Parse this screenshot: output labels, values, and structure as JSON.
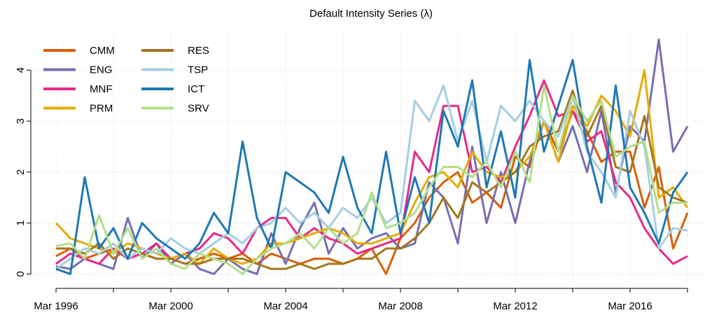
{
  "chart_data": {
    "type": "line",
    "title": "Default Intensity Series (λ)",
    "x": [
      "Mar 1996",
      "Sep 1996",
      "Mar 1997",
      "Sep 1997",
      "Mar 1998",
      "Sep 1998",
      "Mar 1999",
      "Sep 1999",
      "Mar 2000",
      "Sep 2000",
      "Mar 2001",
      "Sep 2001",
      "Mar 2002",
      "Sep 2002",
      "Mar 2003",
      "Sep 2003",
      "Mar 2004",
      "Sep 2004",
      "Mar 2005",
      "Sep 2005",
      "Mar 2006",
      "Sep 2006",
      "Mar 2007",
      "Sep 2007",
      "Mar 2008",
      "Sep 2008",
      "Mar 2009",
      "Sep 2009",
      "Mar 2010",
      "Sep 2010",
      "Mar 2011",
      "Sep 2011",
      "Mar 2012",
      "Sep 2012",
      "Mar 2013",
      "Sep 2013",
      "Mar 2014",
      "Sep 2014",
      "Mar 2015",
      "Sep 2015",
      "Mar 2016",
      "Sep 2016",
      "Mar 2017",
      "Sep 2017",
      "Mar 2018"
    ],
    "xticks": [
      "Mar 1996",
      "Mar 2000",
      "Mar 2004",
      "Mar 2008",
      "Mar 2012",
      "Mar 2016"
    ],
    "xminorticks": [
      "Mar 1998",
      "Mar 2002",
      "Mar 2006",
      "Mar 2010",
      "Mar 2014",
      "Mar 2018"
    ],
    "ylim": [
      -0.2,
      4.8
    ],
    "yticks": [
      0,
      1,
      2,
      3,
      4
    ],
    "grid": true,
    "legend": "top-left",
    "series": [
      {
        "name": "CMM",
        "color": "#d95f02",
        "values": [
          0.35,
          0.5,
          0.3,
          0.4,
          0.5,
          0.3,
          0.4,
          0.3,
          0.3,
          0.2,
          0.3,
          0.4,
          0.3,
          0.4,
          0.2,
          0.4,
          0.3,
          0.2,
          0.3,
          0.3,
          0.2,
          0.3,
          0.5,
          0.0,
          0.7,
          1.0,
          1.5,
          1.8,
          2.0,
          1.4,
          1.6,
          1.3,
          2.3,
          2.1,
          3.0,
          2.4,
          3.2,
          2.8,
          2.2,
          2.4,
          2.4,
          1.3,
          2.1,
          0.5,
          1.2
        ]
      },
      {
        "name": "ENG",
        "color": "#7570b3",
        "values": [
          0.15,
          0.1,
          0.3,
          0.2,
          0.1,
          1.1,
          0.3,
          0.6,
          0.2,
          0.4,
          0.1,
          0.0,
          0.3,
          0.1,
          0.0,
          0.8,
          0.2,
          0.9,
          1.4,
          0.4,
          0.9,
          0.5,
          0.7,
          0.8,
          0.5,
          0.6,
          1.8,
          1.5,
          0.6,
          2.5,
          1.0,
          2.0,
          1.0,
          2.2,
          3.0,
          2.2,
          2.9,
          2.0,
          3.2,
          1.6,
          2.9,
          2.6,
          4.6,
          2.4,
          2.9
        ]
      },
      {
        "name": "MNF",
        "color": "#e7298a",
        "values": [
          0.2,
          0.4,
          0.3,
          0.2,
          0.5,
          0.3,
          0.4,
          0.6,
          0.3,
          0.4,
          0.5,
          0.8,
          0.7,
          0.4,
          0.9,
          1.1,
          1.1,
          0.7,
          0.9,
          0.7,
          0.6,
          0.4,
          0.5,
          0.6,
          0.7,
          2.4,
          2.0,
          3.3,
          3.3,
          2.0,
          2.1,
          1.8,
          2.5,
          3.1,
          3.8,
          3.1,
          3.2,
          2.6,
          2.8,
          1.8,
          1.5,
          0.9,
          0.5,
          0.2,
          0.35
        ]
      },
      {
        "name": "PRM",
        "color": "#e6ab02",
        "values": [
          1.0,
          0.7,
          0.6,
          0.5,
          0.4,
          0.6,
          0.5,
          0.4,
          0.3,
          0.4,
          0.2,
          0.5,
          0.3,
          0.2,
          0.3,
          0.6,
          0.6,
          0.7,
          0.8,
          0.9,
          0.8,
          0.6,
          0.6,
          0.7,
          0.8,
          1.4,
          1.9,
          2.0,
          1.7,
          2.4,
          2.0,
          1.9,
          2.0,
          2.3,
          3.0,
          2.2,
          3.3,
          2.9,
          3.5,
          3.2,
          2.7,
          4.0,
          1.5,
          1.7,
          1.3
        ]
      },
      {
        "name": "RES",
        "color": "#a6761d",
        "values": [
          0.5,
          0.5,
          0.4,
          0.6,
          0.3,
          0.5,
          0.4,
          0.3,
          0.3,
          0.2,
          0.2,
          0.3,
          0.3,
          0.3,
          0.2,
          0.1,
          0.1,
          0.2,
          0.1,
          0.2,
          0.2,
          0.3,
          0.3,
          0.5,
          0.5,
          0.7,
          1.0,
          1.5,
          1.1,
          1.8,
          1.6,
          1.8,
          2.0,
          2.5,
          2.7,
          2.8,
          3.6,
          2.7,
          3.3,
          2.1,
          2.0,
          3.1,
          1.7,
          1.5,
          1.4
        ]
      },
      {
        "name": "TSP",
        "color": "#a6cee3",
        "values": [
          0.1,
          0.3,
          0.5,
          0.4,
          0.6,
          0.3,
          0.5,
          0.4,
          0.7,
          0.5,
          0.4,
          0.6,
          0.8,
          0.6,
          0.9,
          1.0,
          1.3,
          1.0,
          1.2,
          0.9,
          1.3,
          1.1,
          1.5,
          1.0,
          1.2,
          3.4,
          3.0,
          3.7,
          2.6,
          3.4,
          2.2,
          3.3,
          3.0,
          3.4,
          3.0,
          2.7,
          3.5,
          2.4,
          2.0,
          1.5,
          3.2,
          2.5,
          0.5,
          0.9,
          0.85
        ]
      },
      {
        "name": "ICT",
        "color": "#1f78b4",
        "values": [
          0.1,
          0.0,
          1.9,
          0.5,
          0.9,
          0.3,
          1.0,
          0.7,
          0.5,
          0.3,
          0.6,
          1.2,
          0.8,
          2.6,
          1.1,
          0.5,
          2.0,
          1.8,
          1.6,
          1.2,
          2.3,
          1.3,
          0.8,
          2.4,
          0.8,
          1.9,
          1.0,
          3.2,
          2.5,
          3.8,
          1.7,
          2.8,
          1.5,
          4.2,
          2.4,
          3.3,
          4.2,
          2.5,
          1.4,
          3.7,
          1.7,
          1.2,
          0.6,
          1.6,
          2.0
        ]
      },
      {
        "name": "SRV",
        "color": "#b2df8a",
        "values": [
          0.55,
          0.6,
          0.3,
          1.15,
          0.4,
          0.9,
          0.3,
          0.5,
          0.2,
          0.1,
          0.4,
          0.3,
          0.2,
          0.0,
          0.3,
          0.5,
          0.6,
          0.8,
          0.5,
          0.9,
          0.6,
          0.8,
          1.6,
          0.9,
          1.0,
          1.2,
          1.7,
          2.1,
          2.1,
          1.9,
          2.2,
          1.7,
          2.4,
          1.8,
          3.7,
          2.4,
          3.5,
          3.0,
          3.4,
          2.3,
          2.5,
          2.6,
          1.2,
          1.4,
          1.4
        ]
      }
    ]
  }
}
